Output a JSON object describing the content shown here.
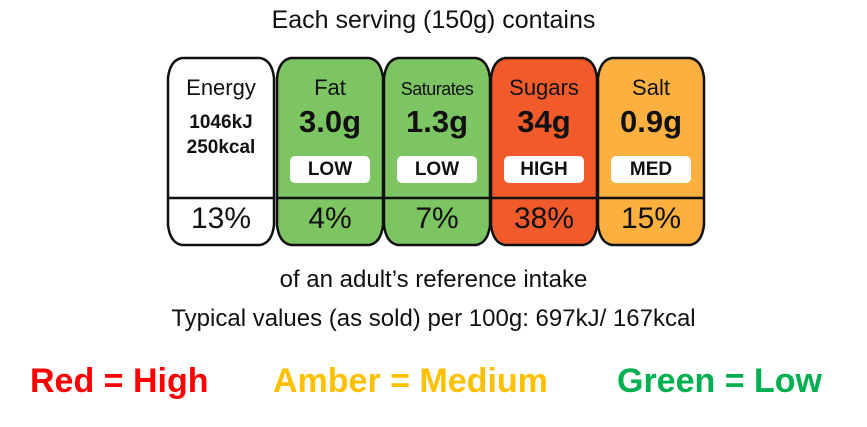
{
  "title": "Each serving (150g) contains",
  "nutrients": [
    {
      "name": "Energy",
      "lines": [
        "1046kJ",
        "250kcal"
      ],
      "percent": "13%",
      "color": "#ffffff"
    },
    {
      "name": "Fat",
      "value": "3.0g",
      "level": "LOW",
      "percent": "4%",
      "color": "#7dc462"
    },
    {
      "name": "Saturates",
      "value": "1.3g",
      "level": "LOW",
      "percent": "7%",
      "color": "#7dc462"
    },
    {
      "name": "Sugars",
      "value": "34g",
      "level": "HIGH",
      "percent": "38%",
      "color": "#f15a2b"
    },
    {
      "name": "Salt",
      "value": "0.9g",
      "level": "MED",
      "percent": "15%",
      "color": "#fbb040"
    }
  ],
  "reference_note": "of an adult’s reference intake",
  "typical_values": "Typical values (as sold) per 100g: 697kJ/ 167kcal",
  "legend": [
    {
      "text": "Red = High",
      "color": "#ff0000"
    },
    {
      "text": "Amber = Medium",
      "color": "#ffc000"
    },
    {
      "text": "Green = Low",
      "color": "#00b050"
    }
  ]
}
